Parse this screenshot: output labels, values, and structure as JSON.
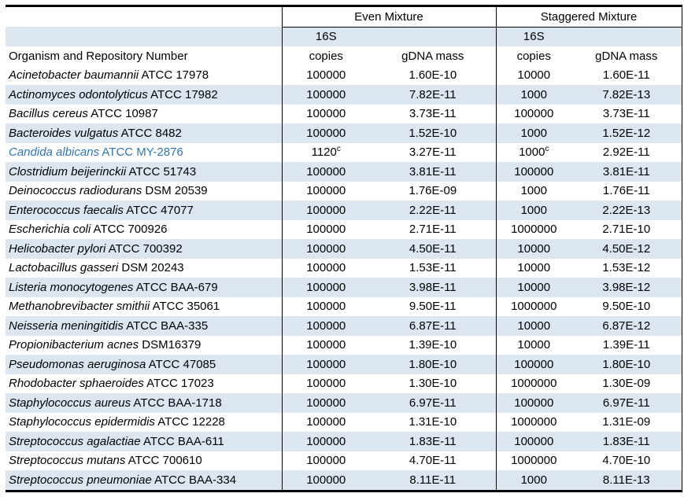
{
  "colors": {
    "stripe": "#DCE6F1",
    "link": "#2E74B5"
  },
  "table": {
    "groups": [
      "Even Mixture",
      "Staggered Mixture"
    ],
    "subheader_16s": "16S",
    "organism_header": "Organism and Repository Number",
    "copies_label": "copies",
    "gdna_label": "gDNA mass",
    "rows": [
      {
        "italic": "Acinetobacter baumannii",
        "rest": "ATCC 17978",
        "even_copies": "100000",
        "even_sup": "",
        "even_gdna": "1.60E-10",
        "stag_copies": "10000",
        "stag_sup": "",
        "stag_gdna": "1.60E-11",
        "link": false
      },
      {
        "italic": "Actinomyces odontolyticus",
        "rest": "ATCC 17982",
        "even_copies": "100000",
        "even_sup": "",
        "even_gdna": "7.82E-11",
        "stag_copies": "1000",
        "stag_sup": "",
        "stag_gdna": "7.82E-13",
        "link": false
      },
      {
        "italic": "Bacillus cereus",
        "rest": "ATCC 10987",
        "even_copies": "100000",
        "even_sup": "",
        "even_gdna": "3.73E-11",
        "stag_copies": "100000",
        "stag_sup": "",
        "stag_gdna": "3.73E-11",
        "link": false
      },
      {
        "italic": "Bacteroides vulgatus",
        "rest": "ATCC 8482",
        "even_copies": "100000",
        "even_sup": "",
        "even_gdna": "1.52E-10",
        "stag_copies": "1000",
        "stag_sup": "",
        "stag_gdna": "1.52E-12",
        "link": false
      },
      {
        "italic": "Candida albicans",
        "rest": "ATCC MY-2876",
        "even_copies": "1120",
        "even_sup": "c",
        "even_gdna": "3.27E-11",
        "stag_copies": "1000",
        "stag_sup": "c",
        "stag_gdna": "2.92E-11",
        "link": true
      },
      {
        "italic": "Clostridium beijerinckii",
        "rest": "ATCC 51743",
        "even_copies": "100000",
        "even_sup": "",
        "even_gdna": "3.81E-11",
        "stag_copies": "100000",
        "stag_sup": "",
        "stag_gdna": "3.81E-11",
        "link": false
      },
      {
        "italic": "Deinococcus radiodurans",
        "rest": "DSM 20539",
        "even_copies": "100000",
        "even_sup": "",
        "even_gdna": "1.76E-09",
        "stag_copies": "1000",
        "stag_sup": "",
        "stag_gdna": "1.76E-11",
        "link": false
      },
      {
        "italic": "Enterococcus faecalis",
        "rest": "ATCC 47077",
        "even_copies": "100000",
        "even_sup": "",
        "even_gdna": "2.22E-11",
        "stag_copies": "1000",
        "stag_sup": "",
        "stag_gdna": "2.22E-13",
        "link": false
      },
      {
        "italic": "Escherichia coli",
        "rest": "ATCC 700926",
        "even_copies": "100000",
        "even_sup": "",
        "even_gdna": "2.71E-11",
        "stag_copies": "1000000",
        "stag_sup": "",
        "stag_gdna": "2.71E-10",
        "link": false
      },
      {
        "italic": "Helicobacter pylori",
        "rest": "ATCC 700392",
        "even_copies": "100000",
        "even_sup": "",
        "even_gdna": "4.50E-11",
        "stag_copies": "10000",
        "stag_sup": "",
        "stag_gdna": "4.50E-12",
        "link": false
      },
      {
        "italic": "Lactobacillus gasseri",
        "rest": "DSM 20243",
        "even_copies": "100000",
        "even_sup": "",
        "even_gdna": "1.53E-11",
        "stag_copies": "10000",
        "stag_sup": "",
        "stag_gdna": "1.53E-12",
        "link": false
      },
      {
        "italic": "Listeria monocytogenes",
        "rest": "ATCC BAA-679",
        "even_copies": "100000",
        "even_sup": "",
        "even_gdna": "3.98E-11",
        "stag_copies": "10000",
        "stag_sup": "",
        "stag_gdna": "3.98E-12",
        "link": false
      },
      {
        "italic": "Methanobrevibacter smithii",
        "rest": "ATCC 35061",
        "even_copies": "100000",
        "even_sup": "",
        "even_gdna": "9.50E-11",
        "stag_copies": "1000000",
        "stag_sup": "",
        "stag_gdna": "9.50E-10",
        "link": false
      },
      {
        "italic": "Neisseria meningitidis",
        "rest": "ATCC BAA-335",
        "even_copies": "100000",
        "even_sup": "",
        "even_gdna": "6.87E-11",
        "stag_copies": "10000",
        "stag_sup": "",
        "stag_gdna": "6.87E-12",
        "link": false
      },
      {
        "italic": "Propionibacterium acnes",
        "rest": "DSM16379",
        "even_copies": "100000",
        "even_sup": "",
        "even_gdna": "1.39E-10",
        "stag_copies": "10000",
        "stag_sup": "",
        "stag_gdna": "1.39E-11",
        "link": false
      },
      {
        "italic": "Pseudomonas aeruginosa",
        "rest": "ATCC 47085",
        "even_copies": "100000",
        "even_sup": "",
        "even_gdna": "1.80E-10",
        "stag_copies": "100000",
        "stag_sup": "",
        "stag_gdna": "1.80E-10",
        "link": false
      },
      {
        "italic": "Rhodobacter sphaeroides",
        "rest": "ATCC 17023",
        "even_copies": "100000",
        "even_sup": "",
        "even_gdna": "1.30E-10",
        "stag_copies": "1000000",
        "stag_sup": "",
        "stag_gdna": "1.30E-09",
        "link": false
      },
      {
        "italic": "Staphylococcus aureus",
        "rest": "ATCC BAA-1718",
        "even_copies": "100000",
        "even_sup": "",
        "even_gdna": "6.97E-11",
        "stag_copies": "100000",
        "stag_sup": "",
        "stag_gdna": "6.97E-11",
        "link": false
      },
      {
        "italic": "Staphylococcus epidermidis",
        "rest": "ATCC 12228",
        "even_copies": "100000",
        "even_sup": "",
        "even_gdna": "1.31E-10",
        "stag_copies": "1000000",
        "stag_sup": "",
        "stag_gdna": "1.31E-09",
        "link": false
      },
      {
        "italic": "Streptococcus agalactiae",
        "rest": "ATCC BAA-611",
        "even_copies": "100000",
        "even_sup": "",
        "even_gdna": "1.83E-11",
        "stag_copies": "100000",
        "stag_sup": "",
        "stag_gdna": "1.83E-11",
        "link": false
      },
      {
        "italic": "Streptococcus mutans",
        "rest": "ATCC 700610",
        "even_copies": "100000",
        "even_sup": "",
        "even_gdna": "4.70E-11",
        "stag_copies": "1000000",
        "stag_sup": "",
        "stag_gdna": "4.70E-10",
        "link": false
      },
      {
        "italic": "Streptococcus pneumoniae",
        "rest": "ATCC BAA-334",
        "even_copies": "100000",
        "even_sup": "",
        "even_gdna": "8.11E-11",
        "stag_copies": "1000",
        "stag_sup": "",
        "stag_gdna": "8.11E-13",
        "link": false
      }
    ]
  }
}
